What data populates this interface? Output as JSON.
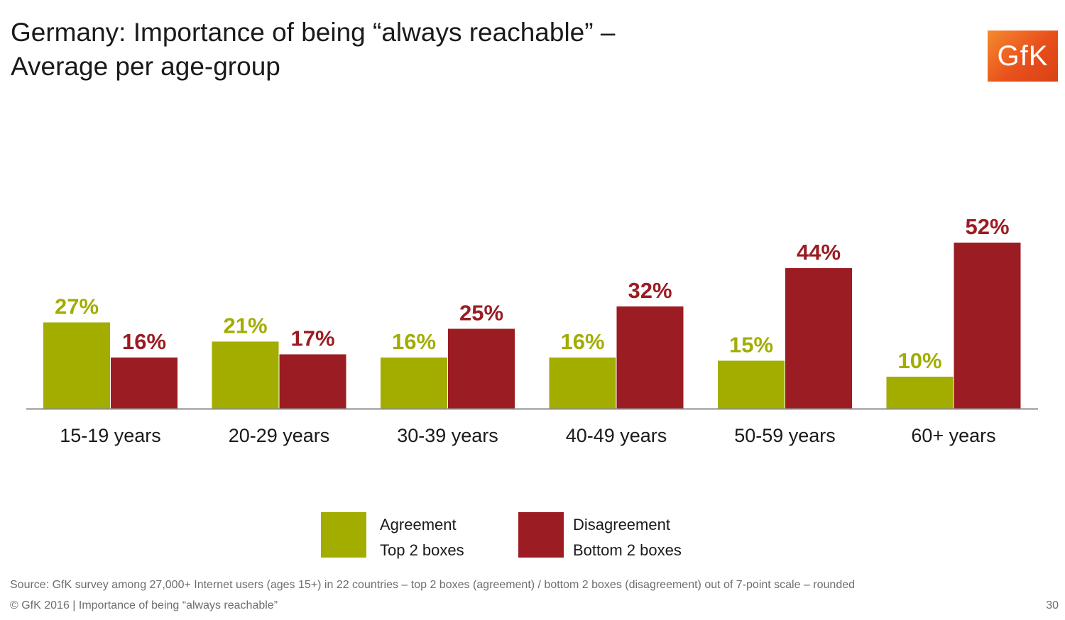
{
  "header": {
    "title_line1": "Germany: Importance of being “always reachable” –",
    "title_line2": "Average per age-group",
    "logo_text": "GfK"
  },
  "chart_data": {
    "type": "bar",
    "categories": [
      "15-19 years",
      "20-29 years",
      "30-39 years",
      "40-49 years",
      "50-59 years",
      "60+ years"
    ],
    "series": [
      {
        "name": "Agreement Top 2 boxes",
        "values": [
          27,
          21,
          16,
          16,
          15,
          10
        ],
        "labels": [
          "27%",
          "21%",
          "16%",
          "16%",
          "15%",
          "10%"
        ],
        "color": "#a2ad00"
      },
      {
        "name": "Disagreement Bottom 2 boxes",
        "values": [
          16,
          17,
          25,
          32,
          44,
          52
        ],
        "labels": [
          "16%",
          "17%",
          "25%",
          "32%",
          "44%",
          "52%"
        ],
        "color": "#9b1c23"
      }
    ],
    "ylim": [
      0,
      60
    ],
    "grid": false,
    "legend_position": "bottom",
    "axis_color": "#8c8c8c"
  },
  "legend": {
    "agreement_line1": "Agreement",
    "agreement_line2": "Top 2 boxes",
    "disagreement_line1": "Disagreement",
    "disagreement_line2": "Bottom 2 boxes"
  },
  "footer": {
    "source": "Source: GfK survey among 27,000+ Internet users (ages 15+) in 22 countries – top 2 boxes (agreement) / bottom 2 boxes (disagreement) out of 7-point scale – rounded",
    "copyright": "© GfK 2016 | Importance of being “always reachable”",
    "page_number": "30"
  }
}
